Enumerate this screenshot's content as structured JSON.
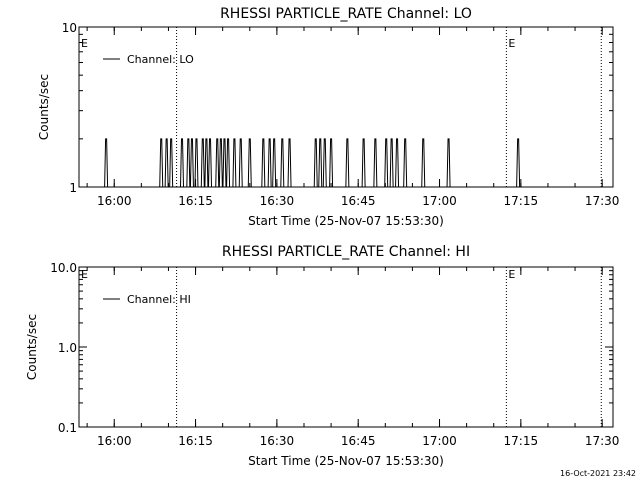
{
  "footer": {
    "timestamp": "16-Oct-2021 23:42"
  },
  "chart_data": [
    {
      "type": "line",
      "title": "RHESSI PARTICLE_RATE Channel: LO",
      "xlabel": "Start Time (25-Nov-07 15:53:30)",
      "ylabel": "Counts/sec",
      "y_scale": "log",
      "ylim": [
        1,
        10
      ],
      "y_ticks": [
        {
          "value": 1,
          "label": "1"
        },
        {
          "value": 10,
          "label": "10"
        }
      ],
      "xlim": [
        "15:53:30",
        "17:32:00"
      ],
      "x_ticks": [
        "16:00",
        "16:15",
        "16:30",
        "16:45",
        "17:00",
        "17:15",
        "17:30"
      ],
      "legend": {
        "placement": "top-left",
        "entries": [
          "Channel: LO"
        ]
      },
      "series": [
        {
          "name": "Channel: LO",
          "baseline": 1,
          "spikes": [
            {
              "time": "15:58:30",
              "value": 2
            },
            {
              "time": "16:08:40",
              "value": 2
            },
            {
              "time": "16:09:40",
              "value": 2
            },
            {
              "time": "16:10:30",
              "value": 2
            },
            {
              "time": "16:12:30",
              "value": 2
            },
            {
              "time": "16:13:40",
              "value": 2
            },
            {
              "time": "16:14:20",
              "value": 2
            },
            {
              "time": "16:15:10",
              "value": 2
            },
            {
              "time": "16:16:20",
              "value": 2
            },
            {
              "time": "16:17:00",
              "value": 2
            },
            {
              "time": "16:17:40",
              "value": 2
            },
            {
              "time": "16:19:00",
              "value": 2
            },
            {
              "time": "16:19:40",
              "value": 2
            },
            {
              "time": "16:20:20",
              "value": 2
            },
            {
              "time": "16:21:00",
              "value": 2
            },
            {
              "time": "16:22:10",
              "value": 2
            },
            {
              "time": "16:23:20",
              "value": 2
            },
            {
              "time": "16:25:00",
              "value": 2
            },
            {
              "time": "16:27:30",
              "value": 2
            },
            {
              "time": "16:28:40",
              "value": 2
            },
            {
              "time": "16:29:30",
              "value": 2
            },
            {
              "time": "16:31:00",
              "value": 2
            },
            {
              "time": "16:32:20",
              "value": 2
            },
            {
              "time": "16:37:10",
              "value": 2
            },
            {
              "time": "16:38:00",
              "value": 2
            },
            {
              "time": "16:38:50",
              "value": 2
            },
            {
              "time": "16:40:00",
              "value": 2
            },
            {
              "time": "16:43:00",
              "value": 2
            },
            {
              "time": "16:46:00",
              "value": 2
            },
            {
              "time": "16:48:10",
              "value": 2
            },
            {
              "time": "16:50:10",
              "value": 2
            },
            {
              "time": "16:51:10",
              "value": 2
            },
            {
              "time": "16:52:10",
              "value": 2
            },
            {
              "time": "16:53:40",
              "value": 2
            },
            {
              "time": "16:57:00",
              "value": 2
            },
            {
              "time": "17:01:40",
              "value": 2
            },
            {
              "time": "17:14:30",
              "value": 2
            }
          ]
        }
      ],
      "vertical_markers": [
        {
          "time": "16:11:30",
          "style": "dotted",
          "label": ""
        },
        {
          "time": "17:12:20",
          "style": "dotted",
          "label": "E"
        },
        {
          "time": "17:29:50",
          "style": "dotted",
          "label": ""
        }
      ],
      "corner_label": "E"
    },
    {
      "type": "line",
      "title": "RHESSI PARTICLE_RATE Channel: HI",
      "xlabel": "Start Time (25-Nov-07 15:53:30)",
      "ylabel": "Counts/sec",
      "y_scale": "log",
      "ylim": [
        0.1,
        10
      ],
      "y_ticks": [
        {
          "value": 0.1,
          "label": "0.1"
        },
        {
          "value": 1,
          "label": "1.0"
        },
        {
          "value": 10,
          "label": "10.0"
        }
      ],
      "xlim": [
        "15:53:30",
        "17:32:00"
      ],
      "x_ticks": [
        "16:00",
        "16:15",
        "16:30",
        "16:45",
        "17:00",
        "17:15",
        "17:30"
      ],
      "legend": {
        "placement": "top-left",
        "entries": [
          "Channel: HI"
        ]
      },
      "series": [
        {
          "name": "Channel: HI",
          "baseline": null,
          "spikes": []
        }
      ],
      "vertical_markers": [
        {
          "time": "16:11:30",
          "style": "dotted",
          "label": ""
        },
        {
          "time": "17:12:20",
          "style": "dotted",
          "label": "E"
        },
        {
          "time": "17:29:50",
          "style": "dotted",
          "label": ""
        }
      ],
      "corner_label": "E"
    }
  ]
}
